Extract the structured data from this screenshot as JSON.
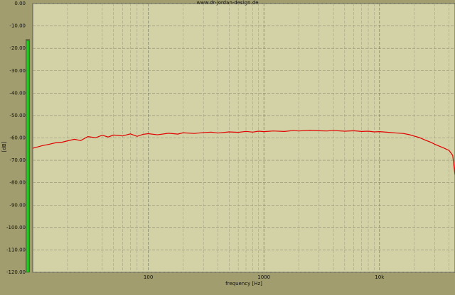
{
  "chart_data": {
    "type": "line",
    "title": "www.dr-jordan-design.de",
    "x_label": "frequency [Hz]",
    "y_label": "[dB]",
    "x_log": true,
    "grid": true,
    "xlim": [
      10,
      45000
    ],
    "ylim": [
      -120,
      0
    ],
    "xticks": [
      100,
      1000,
      {
        "value": 10000,
        "label": "10k"
      }
    ],
    "x_minor_ticks": [
      20,
      30,
      40,
      50,
      60,
      70,
      80,
      90,
      200,
      300,
      400,
      500,
      600,
      700,
      800,
      900,
      2000,
      3000,
      4000,
      5000,
      6000,
      7000,
      8000,
      9000,
      20000,
      30000,
      40000
    ],
    "yticks": [
      {
        "value": 0,
        "label": "0.00"
      },
      {
        "value": -10,
        "label": "-10.00"
      },
      {
        "value": -20,
        "label": "-20.00"
      },
      {
        "value": -30,
        "label": "-30.00"
      },
      {
        "value": -40,
        "label": "-40.00"
      },
      {
        "value": -50,
        "label": "-50.00"
      },
      {
        "value": -60,
        "label": "-60.00"
      },
      {
        "value": -70,
        "label": "-70.00"
      },
      {
        "value": -80,
        "label": "-80.00"
      },
      {
        "value": -90,
        "label": "-90.00"
      },
      {
        "value": -100,
        "label": "-100.00"
      },
      {
        "value": -110,
        "label": "-110.00"
      },
      {
        "value": -120,
        "label": "-120.00"
      }
    ],
    "level_meter": {
      "value": -16.5,
      "color": "#22cc22"
    },
    "x": [
      10,
      12,
      14,
      16,
      18,
      20,
      23,
      26,
      30,
      35,
      40,
      45,
      50,
      60,
      70,
      80,
      90,
      100,
      120,
      150,
      180,
      200,
      250,
      300,
      350,
      400,
      500,
      600,
      700,
      800,
      900,
      1000,
      1200,
      1500,
      1800,
      2000,
      2500,
      3000,
      3500,
      4000,
      5000,
      6000,
      7000,
      8000,
      9000,
      10000,
      12000,
      14000,
      16000,
      18000,
      20000,
      22000,
      25000,
      28000,
      30000,
      33000,
      36000,
      40000,
      43000,
      45000
    ],
    "series": [
      {
        "color": "#e00000",
        "values": [
          -64.6,
          -63.5,
          -62.8,
          -62.1,
          -61.9,
          -61.3,
          -60.6,
          -61.2,
          -59.4,
          -59.9,
          -58.8,
          -59.6,
          -58.7,
          -59.1,
          -58.2,
          -59.3,
          -58.4,
          -58.1,
          -58.6,
          -57.9,
          -58.3,
          -57.7,
          -58.0,
          -57.6,
          -57.4,
          -57.8,
          -57.3,
          -57.5,
          -57.1,
          -57.4,
          -57.0,
          -57.2,
          -56.9,
          -57.1,
          -56.7,
          -56.9,
          -56.6,
          -56.8,
          -56.9,
          -56.7,
          -57.0,
          -56.8,
          -57.1,
          -57.0,
          -57.3,
          -57.2,
          -57.5,
          -57.8,
          -58.0,
          -58.5,
          -59.2,
          -59.8,
          -61.0,
          -62.0,
          -62.8,
          -63.7,
          -64.5,
          -65.6,
          -67.8,
          -76.5
        ]
      }
    ]
  }
}
